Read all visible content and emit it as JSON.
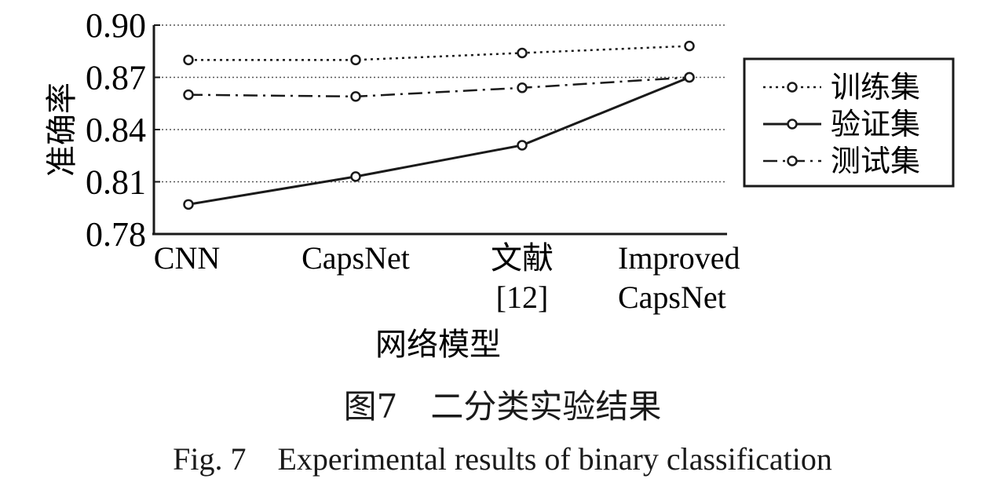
{
  "chart_data": {
    "type": "line",
    "categories": [
      "CNN",
      "CapsNet",
      "文献\n[12]",
      "Improved\nCapsNet"
    ],
    "series": [
      {
        "name": "训练集",
        "values": [
          0.88,
          0.88,
          0.884,
          0.888
        ],
        "style": "dotted"
      },
      {
        "name": "验证集",
        "values": [
          0.797,
          0.813,
          0.831,
          0.87
        ],
        "style": "solid"
      },
      {
        "name": "测试集",
        "values": [
          0.86,
          0.859,
          0.864,
          0.87
        ],
        "style": "dashdot"
      }
    ],
    "yticks": [
      "0.78",
      "0.81",
      "0.84",
      "0.87",
      "0.90"
    ],
    "ylim": [
      0.78,
      0.9
    ],
    "ylabel": "准确率",
    "xlabel": "网络模型",
    "grid": "horizontal dotted",
    "legend_position": "right",
    "colors": {
      "line": "#1a1a1a",
      "grid": "#555555",
      "marker_fill": "#ffffff"
    }
  },
  "caption": {
    "cn": "图7　二分类实验结果",
    "en": "Fig. 7　Experimental results of binary classification"
  }
}
